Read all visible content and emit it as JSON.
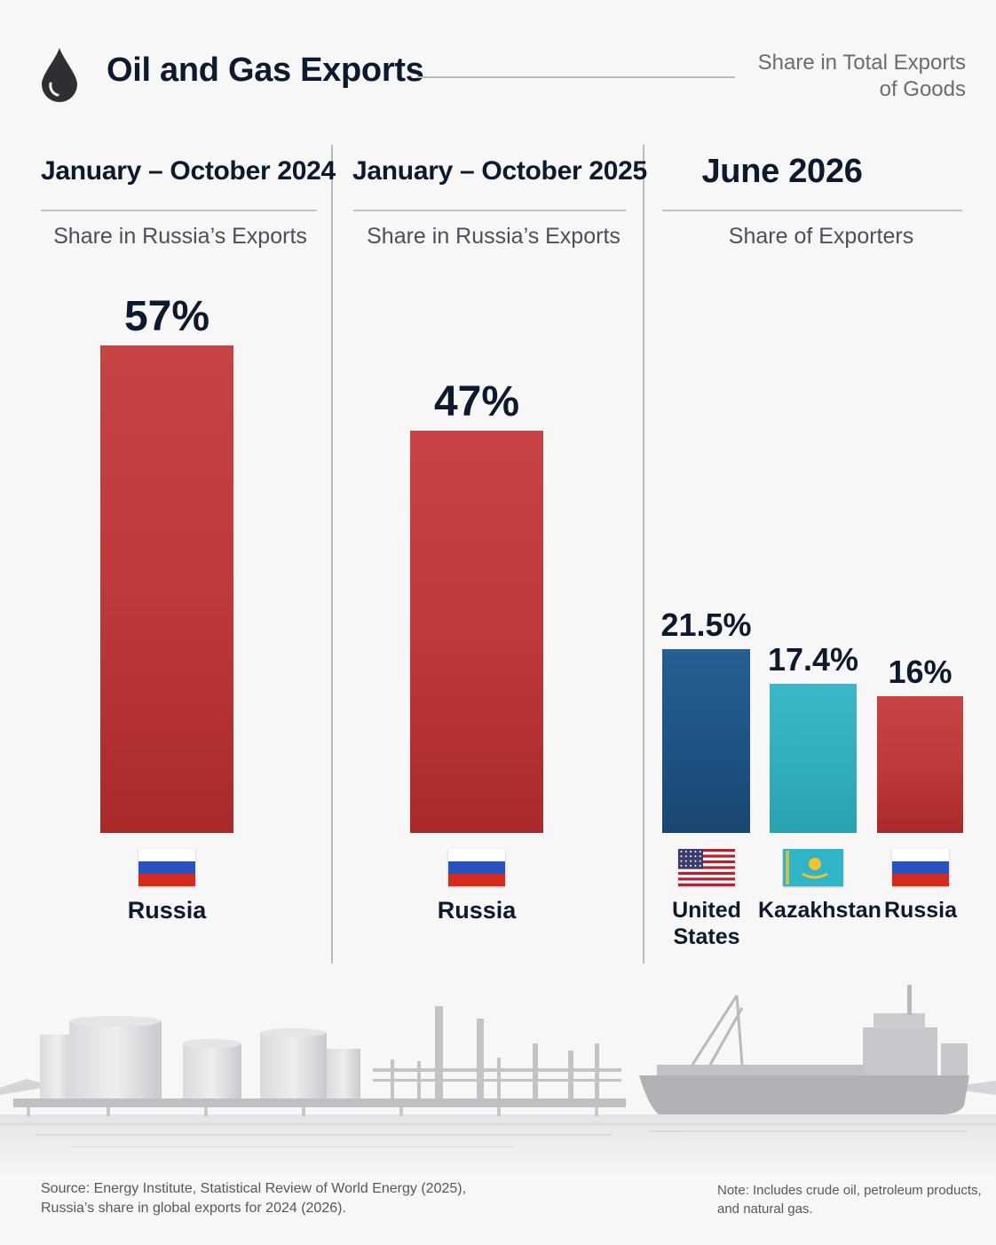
{
  "header": {
    "title": "Oil and Gas Exports",
    "subtitle_line1": "Share in Total Exports",
    "subtitle_line2": "of Goods",
    "icon": "oil-drop-icon"
  },
  "panels": [
    {
      "title": "January – October 2024",
      "subtitle": "Share in Russia’s Exports"
    },
    {
      "title": "January – October 2025",
      "subtitle": "Share in Russia’s Exports"
    },
    {
      "title": "June 2026",
      "subtitle": "Share of Exporters"
    }
  ],
  "chart_data": [
    {
      "type": "bar",
      "title": "January – October 2024",
      "subtitle": "Share in Russia’s Exports",
      "unit": "%",
      "categories": [
        "Russia"
      ],
      "values": [
        57
      ],
      "value_labels": [
        "57%"
      ],
      "colors": [
        "#bf3a3a"
      ],
      "flags": [
        "russia-flag-icon"
      ]
    },
    {
      "type": "bar",
      "title": "January – October 2025",
      "subtitle": "Share in Russia’s Exports",
      "unit": "%",
      "categories": [
        "Russia"
      ],
      "values": [
        47
      ],
      "value_labels": [
        "47%"
      ],
      "colors": [
        "#bf3a3a"
      ],
      "flags": [
        "russia-flag-icon"
      ]
    },
    {
      "type": "bar",
      "title": "June 2026",
      "subtitle": "Share of Exporters",
      "unit": "%",
      "categories": [
        "United States",
        "Kazakhstan",
        "Russia"
      ],
      "values": [
        21.5,
        17.4,
        16
      ],
      "value_labels": [
        "21.5%",
        "17.4%",
        "16%"
      ],
      "colors": [
        "#1f5283",
        "#31acba",
        "#bf3a3a"
      ],
      "flags": [
        "us-flag-icon",
        "kazakhstan-flag-icon",
        "russia-flag-icon"
      ]
    }
  ],
  "footer": {
    "source_line1": "Source: Energy Institute, Statistical Review of World Energy (2025),",
    "source_line2": "Russia’s share in global exports for 2024 (2026).",
    "note_line1": "Note: Includes crude oil, petroleum products,",
    "note_line2": "and natural gas."
  },
  "illustration": {
    "icon": "oil-terminal-and-tanker-illustration"
  }
}
